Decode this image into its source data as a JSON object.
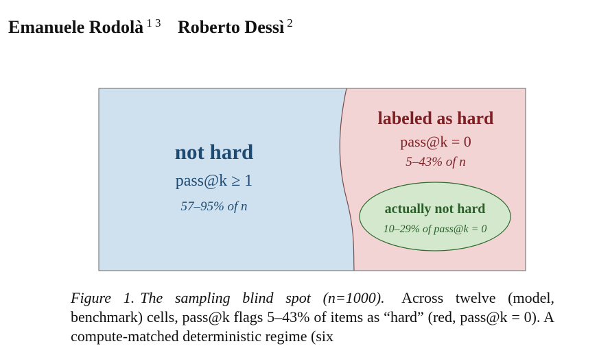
{
  "header": {
    "authors": [
      {
        "name": "Emanuele Rodolà",
        "affiliations": "1 3"
      },
      {
        "name": "Roberto Dessì",
        "affiliations": "2"
      }
    ]
  },
  "figure": {
    "regions": {
      "left": {
        "title": "not hard",
        "metric": "pass@k ≥ 1",
        "share": "57–95% of n"
      },
      "right": {
        "title": "labeled as hard",
        "metric": "pass@k = 0",
        "share": "5–43% of n"
      },
      "inner": {
        "title": "actually not hard",
        "share": "10–29% of pass@k = 0"
      }
    },
    "caption": {
      "label": "Figure 1.",
      "title": "The sampling blind spot (n=1000).",
      "text": "Across twelve (model, benchmark) cells, pass@k flags 5–43% of items as “hard” (red, pass@k = 0). A compute-matched deterministic regime (six"
    }
  }
}
